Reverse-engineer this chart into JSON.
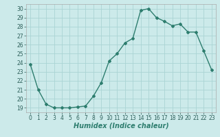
{
  "x": [
    0,
    1,
    2,
    3,
    4,
    5,
    6,
    7,
    8,
    9,
    10,
    11,
    12,
    13,
    14,
    15,
    16,
    17,
    18,
    19,
    20,
    21,
    22,
    23
  ],
  "y": [
    23.8,
    21.0,
    19.4,
    19.0,
    19.0,
    19.0,
    19.1,
    19.2,
    20.3,
    21.8,
    24.2,
    25.0,
    26.2,
    26.7,
    29.8,
    30.0,
    29.0,
    28.6,
    28.1,
    28.3,
    27.4,
    27.4,
    25.3,
    23.2
  ],
  "line_color": "#2d7d6e",
  "marker": "D",
  "marker_size": 2.0,
  "bg_color": "#cceaea",
  "grid_color": "#aad4d4",
  "xlabel": "Humidex (Indice chaleur)",
  "ylim": [
    18.5,
    30.5
  ],
  "xlim": [
    -0.5,
    23.5
  ],
  "yticks": [
    19,
    20,
    21,
    22,
    23,
    24,
    25,
    26,
    27,
    28,
    29,
    30
  ],
  "xticks": [
    0,
    1,
    2,
    3,
    4,
    5,
    6,
    7,
    8,
    9,
    10,
    11,
    12,
    13,
    14,
    15,
    16,
    17,
    18,
    19,
    20,
    21,
    22,
    23
  ],
  "tick_fontsize": 5.5,
  "xlabel_fontsize": 7.0,
  "line_width": 1.0
}
